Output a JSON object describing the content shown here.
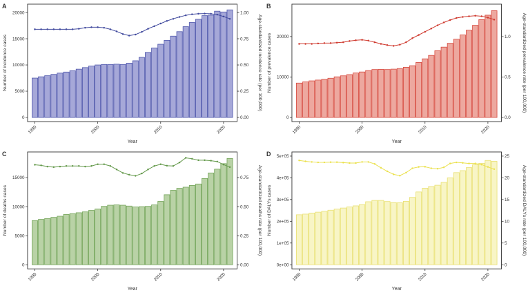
{
  "page": {
    "background": "#ffffff"
  },
  "chart_data": {
    "type": "bar",
    "subtype": "dual-axis bar+line, 2x2 panel figure",
    "xlabel": "Year",
    "years": [
      1990,
      1991,
      1992,
      1993,
      1994,
      1995,
      1996,
      1997,
      1998,
      1999,
      2000,
      2001,
      2002,
      2003,
      2004,
      2005,
      2006,
      2007,
      2008,
      2009,
      2010,
      2011,
      2012,
      2013,
      2014,
      2015,
      2016,
      2017,
      2018,
      2019,
      2020,
      2021
    ],
    "x_tick_labels": [
      "1990",
      "2000",
      "2010",
      "2020"
    ],
    "x_tick_indices": [
      0,
      10,
      20,
      30
    ],
    "right_to_left_factor": 20000,
    "panels": [
      {
        "label": "A",
        "name": "incidence",
        "left_axis": {
          "title": "Number of incidence cases",
          "tick_labels": [
            "0",
            "5000",
            "10000",
            "15000",
            "20000"
          ],
          "tick_values": [
            0,
            5000,
            10000,
            15000,
            20000
          ],
          "max": 20800
        },
        "right_axis": {
          "title": "Age-standardized incidence rate (per 100,000)",
          "tick_labels": [
            "0.00",
            "0.25",
            "0.50",
            "0.75",
            "1.00"
          ],
          "tick_values": [
            0,
            0.25,
            0.5,
            0.75,
            1.0
          ]
        },
        "bars": [
          7500,
          7750,
          7950,
          8200,
          8450,
          8650,
          8900,
          9200,
          9500,
          9800,
          10000,
          10100,
          10100,
          10150,
          10100,
          10350,
          10800,
          11450,
          12400,
          13250,
          13950,
          14700,
          15500,
          16350,
          17300,
          18100,
          18700,
          19400,
          19500,
          20250,
          20100,
          20500
        ],
        "line": [
          0.84,
          0.84,
          0.84,
          0.84,
          0.84,
          0.84,
          0.84,
          0.845,
          0.855,
          0.86,
          0.86,
          0.855,
          0.84,
          0.82,
          0.795,
          0.78,
          0.79,
          0.815,
          0.845,
          0.87,
          0.895,
          0.92,
          0.94,
          0.958,
          0.973,
          0.983,
          0.988,
          0.99,
          0.988,
          0.98,
          0.962,
          0.94
        ],
        "colors": {
          "bar_fill": "#a6a8d8",
          "bar_stroke": "#4d55ab",
          "line": "#414a9e"
        }
      },
      {
        "label": "B",
        "name": "prevalence",
        "left_axis": {
          "title": "Number of prevalence cases",
          "tick_labels": [
            "0",
            "10000",
            "20000"
          ],
          "tick_values": [
            0,
            10000,
            20000
          ],
          "max": 27000
        },
        "right_axis": {
          "title": "Age-standardized prevalence rate (per 100,000)",
          "tick_labels": [
            "0.0",
            "0.5",
            "1.0"
          ],
          "tick_values": [
            0,
            0.5,
            1.0
          ]
        },
        "bars": [
          8500,
          8800,
          9050,
          9250,
          9450,
          9700,
          10050,
          10300,
          10600,
          11000,
          11250,
          11600,
          11850,
          11900,
          11850,
          11950,
          12100,
          12400,
          12800,
          13600,
          14500,
          15350,
          16500,
          17400,
          18350,
          19350,
          20400,
          21600,
          22800,
          24200,
          25300,
          26400
        ],
        "line": [
          0.91,
          0.91,
          0.91,
          0.915,
          0.92,
          0.92,
          0.925,
          0.93,
          0.945,
          0.955,
          0.96,
          0.95,
          0.93,
          0.91,
          0.895,
          0.885,
          0.9,
          0.93,
          0.98,
          1.02,
          1.06,
          1.1,
          1.14,
          1.175,
          1.205,
          1.23,
          1.243,
          1.252,
          1.258,
          1.252,
          1.235,
          1.21
        ],
        "colors": {
          "bar_fill": "#eda89f",
          "bar_stroke": "#d6483d",
          "line": "#cf3a2f"
        }
      },
      {
        "label": "C",
        "name": "deaths",
        "left_axis": {
          "title": "Number of deaths cases",
          "tick_labels": [
            "0",
            "5000",
            "10000",
            "15000"
          ],
          "tick_values": [
            0,
            5000,
            10000,
            15000
          ],
          "max": 18700
        },
        "right_axis": {
          "title": "Age-standardized deaths rate (per 100,000)",
          "tick_labels": [
            "0.00",
            "0.25",
            "0.50",
            "0.75"
          ],
          "tick_values": [
            0,
            0.25,
            0.5,
            0.75
          ]
        },
        "bars": [
          7600,
          7800,
          7950,
          8150,
          8350,
          8650,
          8800,
          8950,
          9100,
          9350,
          9600,
          10050,
          10250,
          10300,
          10250,
          10100,
          9950,
          10000,
          10050,
          10300,
          10900,
          12050,
          12800,
          13150,
          13350,
          13650,
          13900,
          14850,
          15800,
          16450,
          17400,
          18300
        ],
        "line": [
          0.86,
          0.855,
          0.845,
          0.84,
          0.845,
          0.85,
          0.85,
          0.85,
          0.845,
          0.85,
          0.865,
          0.865,
          0.85,
          0.82,
          0.79,
          0.775,
          0.765,
          0.785,
          0.82,
          0.85,
          0.865,
          0.852,
          0.85,
          0.88,
          0.92,
          0.912,
          0.9,
          0.9,
          0.895,
          0.888,
          0.862,
          0.84
        ],
        "colors": {
          "bar_fill": "#b9d2a6",
          "bar_stroke": "#71a356",
          "line": "#64994b"
        }
      },
      {
        "label": "D",
        "name": "dalys",
        "left_axis": {
          "title": "Number of DALYs cases",
          "tick_labels": [
            "0e+00",
            "1e+05",
            "2e+05",
            "3e+05",
            "4e+05",
            "5e+05"
          ],
          "tick_values": [
            0,
            100000,
            200000,
            300000,
            400000,
            500000
          ],
          "max": 500000
        },
        "right_axis": {
          "title": "Age-standardized DALYs rate (per 100,000)",
          "tick_labels": [
            "0",
            "5",
            "10",
            "15",
            "20",
            "25"
          ],
          "tick_values": [
            0,
            5,
            10,
            15,
            20,
            25
          ]
        },
        "bars": [
          230000,
          233000,
          238000,
          242000,
          246000,
          251000,
          256000,
          261000,
          266000,
          271000,
          277000,
          290000,
          296000,
          296000,
          291000,
          286000,
          285000,
          292000,
          310000,
          335000,
          352000,
          360000,
          366000,
          379000,
          400000,
          424000,
          433000,
          447000,
          460000,
          467000,
          480000,
          476000
        ],
        "line": [
          24.0,
          23.8,
          23.65,
          23.55,
          23.55,
          23.6,
          23.6,
          23.5,
          23.4,
          23.4,
          23.65,
          23.65,
          23.2,
          22.3,
          21.5,
          20.8,
          20.5,
          21.2,
          22.2,
          22.5,
          22.55,
          22.2,
          22.1,
          22.4,
          23.3,
          23.55,
          23.45,
          23.3,
          23.3,
          23.05,
          22.5,
          22.0
        ],
        "colors": {
          "bar_fill": "#f8f5c6",
          "bar_stroke": "#e9e070",
          "line": "#ebe14e"
        }
      }
    ]
  }
}
